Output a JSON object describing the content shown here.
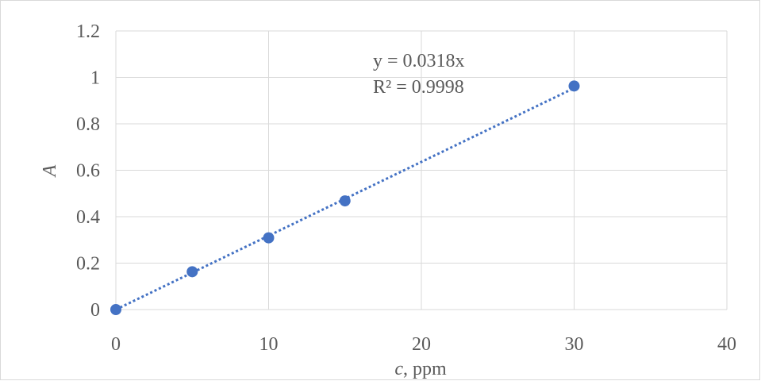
{
  "chart_data": {
    "type": "scatter",
    "title": "",
    "xlabel": {
      "var": "c",
      "unit": ", ppm"
    },
    "ylabel": "A",
    "xlim": [
      0,
      40
    ],
    "ylim": [
      0,
      1.2
    ],
    "xticks": [
      0,
      10,
      20,
      30,
      40
    ],
    "yticks": [
      0,
      0.2,
      0.4,
      0.6,
      0.8,
      1,
      1.2
    ],
    "xtick_labels": [
      "0",
      "10",
      "20",
      "30",
      "40"
    ],
    "ytick_labels": [
      "0",
      "0.2",
      "0.4",
      "0.6",
      "0.8",
      "1",
      "1.2"
    ],
    "grid": true,
    "legend": "none",
    "series": [
      {
        "color": "#4472c4",
        "points": [
          {
            "x": 0,
            "y": 0.0
          },
          {
            "x": 5,
            "y": 0.163
          },
          {
            "x": 10,
            "y": 0.309
          },
          {
            "x": 15,
            "y": 0.468
          },
          {
            "x": 30,
            "y": 0.963
          }
        ]
      }
    ],
    "trendline": {
      "type": "linear",
      "style": "dotted",
      "color": "#4472c4",
      "slope": 0.0318,
      "intercept": 0,
      "x_range": [
        0,
        30
      ],
      "equation": "y = 0.0318x",
      "r_squared": "R² = 0.9998"
    }
  }
}
